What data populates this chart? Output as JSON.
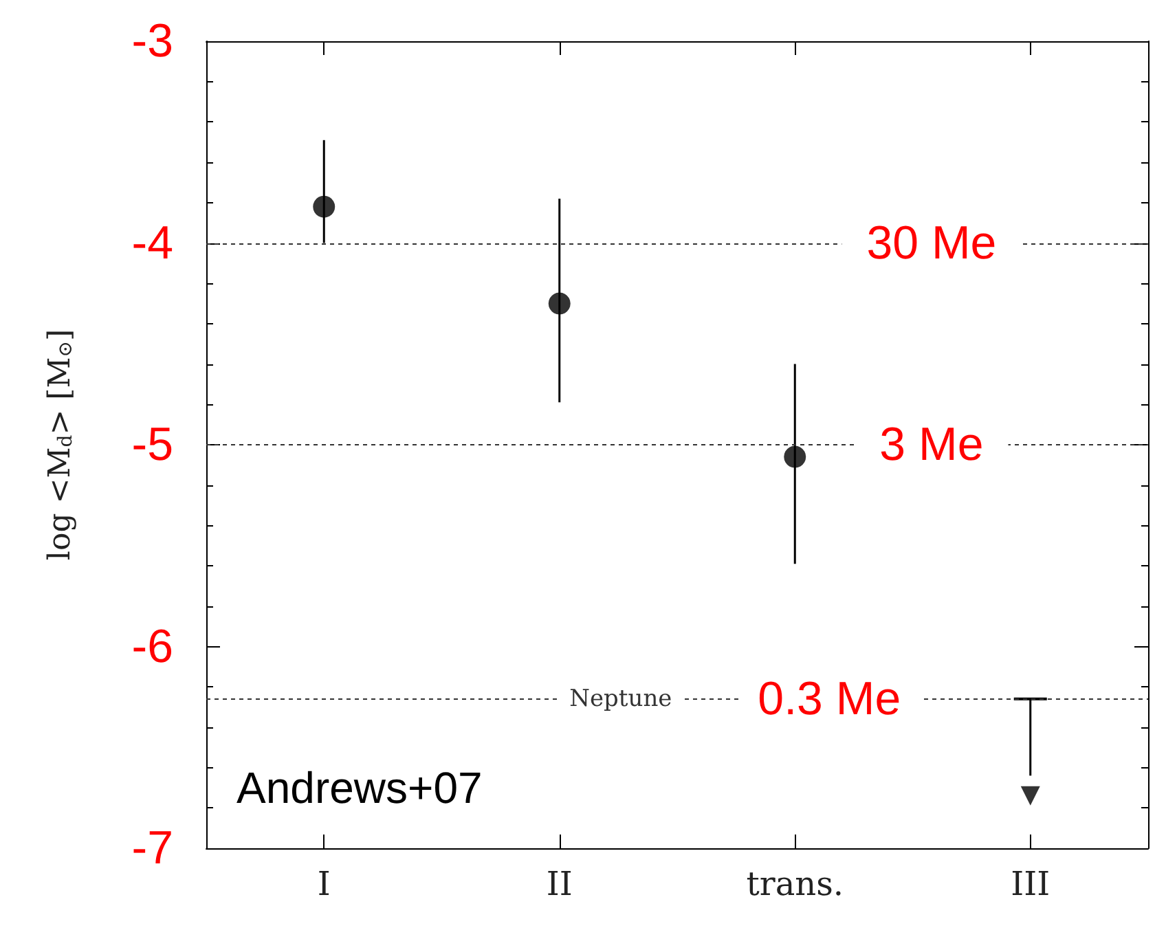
{
  "chart_data": {
    "type": "scatter",
    "ylabel": "log <M$_{d}$> [M$_{⊙}$]",
    "categories": [
      "I",
      "II",
      "trans.",
      "III"
    ],
    "series": [
      {
        "color": "#000000",
        "marker": "circle",
        "values": [
          -3.82,
          -4.3,
          -5.06,
          null
        ],
        "errors": [
          [
            -4.0,
            -3.49
          ],
          [
            -4.79,
            -3.78
          ],
          [
            -5.59,
            -4.6
          ],
          null
        ]
      },
      {
        "color": "#000000",
        "marker": "triangle",
        "values": [
          null,
          null,
          null,
          -6.74
        ],
        "errors": [
          null,
          null,
          null,
          [
            -6.64,
            -6.26
          ]
        ]
      }
    ],
    "ylim": [
      -7,
      -3
    ],
    "yticks": [
      -7,
      -6,
      -5,
      -4,
      -3
    ],
    "grid": false,
    "ref_lines": [
      {
        "axis": "y",
        "value": -4,
        "label": "30 Me",
        "line_style": "dotted"
      },
      {
        "axis": "y",
        "value": -5,
        "label": "3 Me",
        "line_style": "dotted"
      },
      {
        "axis": "y",
        "value": -6.26,
        "label": "Neptune",
        "line_style": "dotted"
      }
    ],
    "annotations": [
      {
        "text": "0.3 Me",
        "x": "trans.",
        "y": -6.26
      },
      "Andrews+07"
    ]
  }
}
